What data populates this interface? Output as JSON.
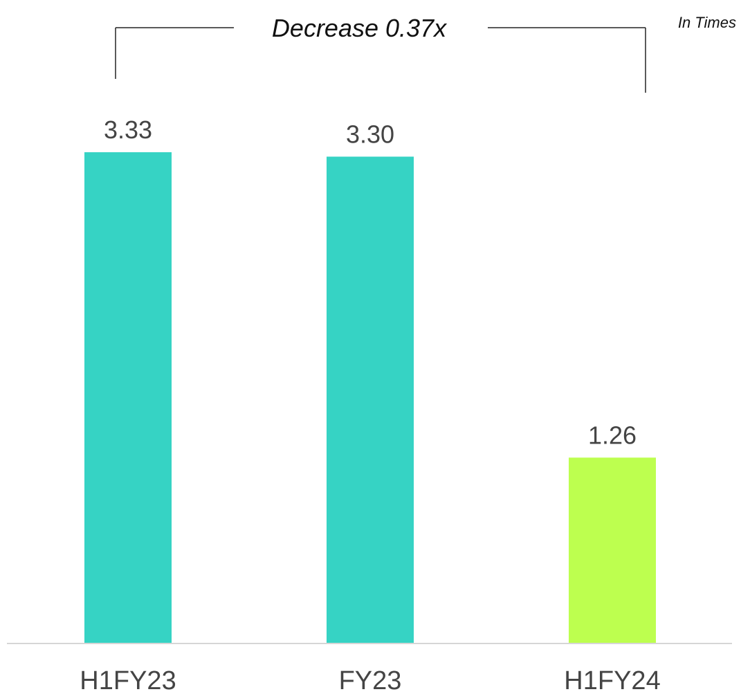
{
  "chart_data": {
    "type": "bar",
    "categories": [
      "H1FY23",
      "FY23",
      "H1FY24"
    ],
    "values": [
      3.33,
      3.3,
      1.26
    ],
    "value_labels": [
      "3.33",
      "3.30",
      "1.26"
    ],
    "colors": [
      "#36d3c4",
      "#36d3c4",
      "#bdff4f"
    ],
    "unit_note": "In Times",
    "annotation": "Decrease 0.37x",
    "ylim": [
      0,
      3.8
    ],
    "grid": false,
    "legend": "none"
  }
}
